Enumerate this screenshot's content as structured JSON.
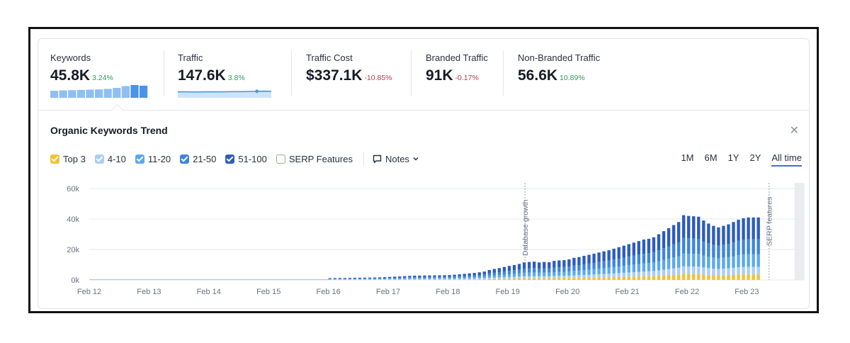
{
  "metrics": [
    {
      "label": "Keywords",
      "value": "45.8K",
      "change": "3.24%",
      "trend": "pos"
    },
    {
      "label": "Traffic",
      "value": "147.6K",
      "change": "3.8%",
      "trend": "pos"
    },
    {
      "label": "Traffic Cost",
      "value": "$337.1K",
      "change": "-10.85%",
      "trend": "neg"
    },
    {
      "label": "Branded Traffic",
      "value": "91K",
      "change": "-0.17%",
      "trend": "neg"
    },
    {
      "label": "Non-Branded Traffic",
      "value": "56.6K",
      "change": "10.89%",
      "trend": "pos"
    }
  ],
  "sparklines": {
    "keywords": [
      0.55,
      0.58,
      0.6,
      0.62,
      0.64,
      0.66,
      0.7,
      0.78,
      0.92,
      1.0,
      0.95
    ],
    "traffic": [
      0.3,
      0.3,
      0.28,
      0.29,
      0.3,
      0.31,
      0.3,
      0.32,
      0.33,
      0.34,
      0.36,
      0.4,
      0.42,
      0.4
    ]
  },
  "trend": {
    "title": "Organic Keywords Trend",
    "legend": [
      {
        "label": "Top 3",
        "color": "#f2c230",
        "checked": true
      },
      {
        "label": "4-10",
        "color": "#a9cdf5",
        "checked": true
      },
      {
        "label": "11-20",
        "color": "#5aa8ee",
        "checked": true
      },
      {
        "label": "21-50",
        "color": "#3d84e0",
        "checked": true
      },
      {
        "label": "51-100",
        "color": "#2d5cbf",
        "checked": true
      },
      {
        "label": "SERP Features",
        "color": "#7cc46b",
        "checked": false
      }
    ],
    "notes_label": "Notes",
    "ranges": [
      "1M",
      "6M",
      "1Y",
      "2Y",
      "All time"
    ],
    "active_range": "All time"
  },
  "chart_data": {
    "type": "bar",
    "stacked": true,
    "title": "Organic Keywords Trend",
    "x_ticks": [
      "Feb 12",
      "Feb 13",
      "Feb 14",
      "Feb 15",
      "Feb 16",
      "Feb 17",
      "Feb 18",
      "Feb 19",
      "Feb 20",
      "Feb 21",
      "Feb 22",
      "Feb 23"
    ],
    "y_ticks": [
      "0k",
      "20k",
      "40k",
      "60k"
    ],
    "ylim": [
      0,
      60000
    ],
    "start_year": 2012,
    "bars_per_year": 12,
    "data_start_index": 48,
    "series_names": [
      "Top 3",
      "4-10",
      "11-20",
      "21-50",
      "51-100"
    ],
    "series_shares": [
      0.09,
      0.12,
      0.2,
      0.24,
      0.35
    ],
    "totals": [
      1200,
      1250,
      1300,
      1280,
      1350,
      1400,
      1450,
      1500,
      1550,
      1600,
      1700,
      1800,
      2000,
      2150,
      2300,
      2500,
      2650,
      2800,
      2850,
      2900,
      2950,
      3000,
      3050,
      3100,
      3200,
      3400,
      3700,
      4000,
      4300,
      4600,
      5000,
      5500,
      6500,
      7200,
      7800,
      8500,
      9200,
      9800,
      10500,
      11500,
      11800,
      12000,
      11500,
      11800,
      11600,
      12500,
      12800,
      13000,
      13500,
      14500,
      15000,
      15800,
      16500,
      17200,
      18000,
      18800,
      19500,
      20500,
      21500,
      22500,
      23500,
      24500,
      25500,
      26500,
      27000,
      28000,
      30000,
      32000,
      34000,
      36000,
      38000,
      42500,
      42000,
      41800,
      41500,
      39000,
      37000,
      35500,
      34500,
      35500,
      36500,
      38000,
      39500,
      40500,
      41000,
      41000,
      41000
    ],
    "annotations": [
      {
        "label": "Database growth",
        "x_index": 87
      },
      {
        "label": "SERP features",
        "x_index": 136
      }
    ],
    "grid": true
  }
}
